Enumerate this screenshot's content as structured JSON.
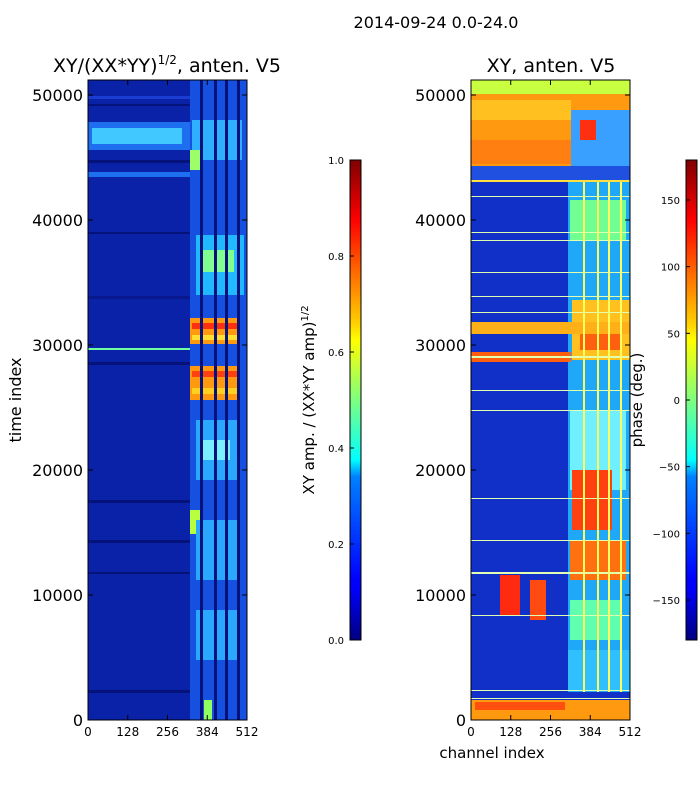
{
  "figure_title": "2014-09-24 0.0-24.0",
  "chart_data": [
    {
      "type": "heatmap",
      "title": "XY/(XX*YY)",
      "title_exponent": "1/2",
      "title_suffix": ", anten. V5",
      "xlabel": "",
      "ylabel": "time index",
      "xlim": [
        0,
        512
      ],
      "ylim": [
        0,
        51200
      ],
      "x_ticks": [
        0,
        128,
        256,
        384,
        512
      ],
      "y_ticks": [
        0,
        10000,
        20000,
        30000,
        40000,
        50000
      ],
      "colormap": "jet",
      "colorbar": {
        "label": "XY amp. / (XX*YY amp)",
        "label_exponent": "1/2",
        "range": [
          0.0,
          1.0
        ],
        "ticks": [
          "0.0",
          "0.2",
          "0.4",
          "0.6",
          "0.8",
          "1.0"
        ]
      }
    },
    {
      "type": "heatmap",
      "title": "XY, anten. V5",
      "xlabel": "channel index",
      "ylabel": "",
      "xlim": [
        0,
        512
      ],
      "ylim": [
        0,
        51200
      ],
      "x_ticks": [
        0,
        128,
        256,
        384,
        512
      ],
      "y_ticks": [
        0,
        10000,
        20000,
        30000,
        40000,
        50000
      ],
      "colormap": "jet",
      "colorbar": {
        "label": "phase (deg.)",
        "range": [
          -180,
          180
        ],
        "ticks": [
          -150,
          -100,
          -50,
          0,
          50,
          100,
          150
        ],
        "tick_labels": [
          "−150",
          "−100",
          "−50",
          "0",
          "50",
          "100",
          "150"
        ]
      }
    }
  ]
}
